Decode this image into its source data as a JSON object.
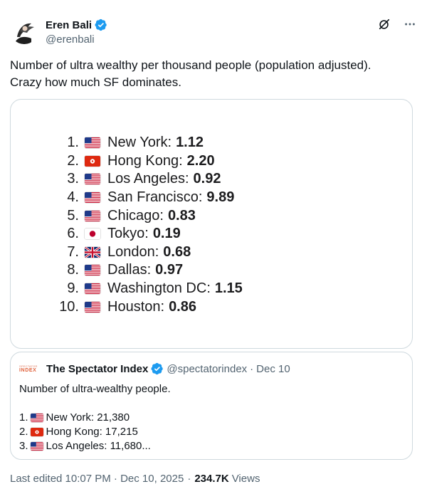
{
  "author": {
    "name": "Eren Bali",
    "handle": "@erenbali",
    "verified": true
  },
  "tweet": {
    "text_line1": "Number of ultra wealthy per thousand people (population adjusted).",
    "text_line2": "Crazy how much SF dominates."
  },
  "ranking": [
    {
      "rank": "1.",
      "flag": "us",
      "city": "New York:",
      "value": "1.12"
    },
    {
      "rank": "2.",
      "flag": "hk",
      "city": "Hong Kong:",
      "value": "2.20"
    },
    {
      "rank": "3.",
      "flag": "us",
      "city": "Los Angeles:",
      "value": "0.92"
    },
    {
      "rank": "4.",
      "flag": "us",
      "city": "San Francisco:",
      "value": "9.89"
    },
    {
      "rank": "5.",
      "flag": "us",
      "city": "Chicago:",
      "value": "0.83"
    },
    {
      "rank": "6.",
      "flag": "jp",
      "city": "Tokyo:",
      "value": "0.19"
    },
    {
      "rank": "7.",
      "flag": "uk",
      "city": "London:",
      "value": "0.68"
    },
    {
      "rank": "8.",
      "flag": "us",
      "city": "Dallas:",
      "value": "0.97"
    },
    {
      "rank": "9.",
      "flag": "us",
      "city": "Washington DC:",
      "value": "1.15"
    },
    {
      "rank": "10.",
      "flag": "us",
      "city": "Houston:",
      "value": "0.86"
    }
  ],
  "quote": {
    "avatar_line1": "SPECTATOR",
    "avatar_line2": "INDEX",
    "name": "The Spectator Index",
    "handle": "@spectatorindex",
    "dot": "·",
    "date": "Dec 10",
    "text": "Number of ultra-wealthy people.",
    "items": [
      {
        "rank": "1.",
        "flag": "us",
        "label": "New York: 21,380"
      },
      {
        "rank": "2.",
        "flag": "hk",
        "label": "Hong Kong: 17,215"
      },
      {
        "rank": "3.",
        "flag": "us",
        "label": "Los Angeles: 11,680..."
      }
    ]
  },
  "footer": {
    "edited": "Last edited 10:07 PM · Dec 10, 2025",
    "dot": "·",
    "views_count": "234.7K",
    "views_label": "Views"
  },
  "colors": {
    "verified": "#1d9bf0",
    "text": "#0f1419",
    "muted": "#536471",
    "border": "#cfd9de"
  },
  "icons": {
    "grok": "grok-icon",
    "more": "more-icon",
    "verified": "verified-badge-icon"
  }
}
